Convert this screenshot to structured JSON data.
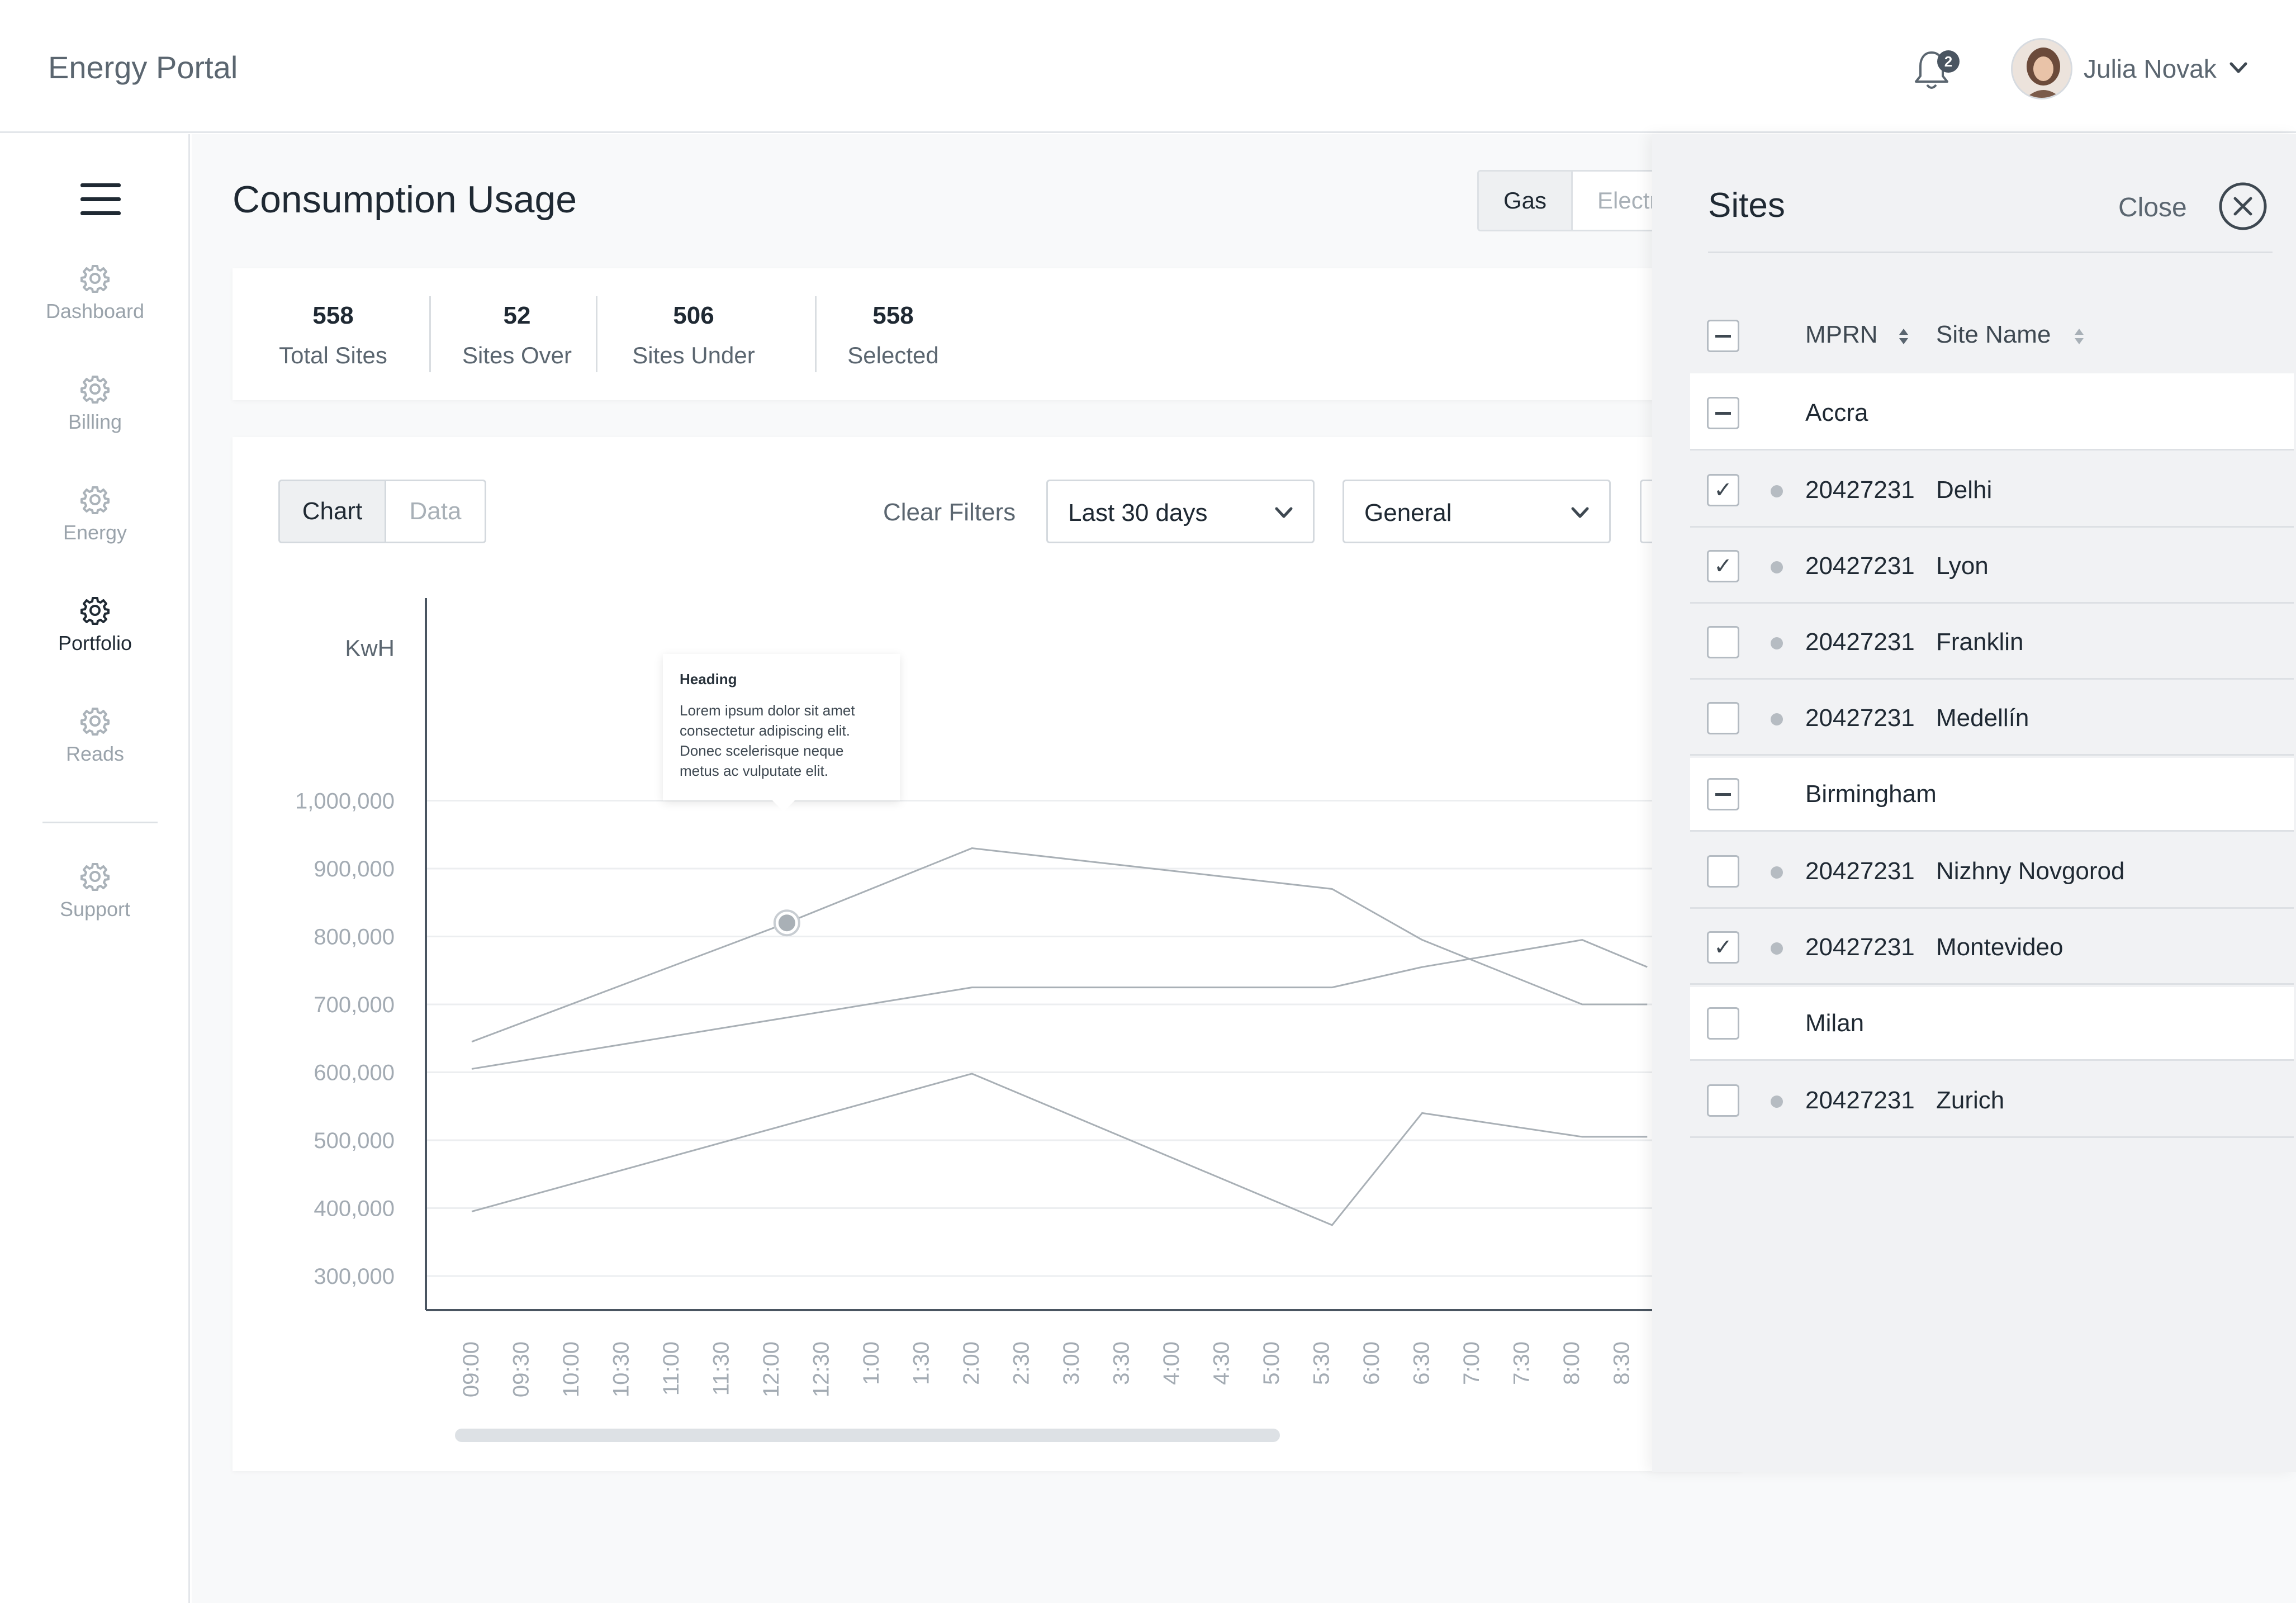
{
  "app": {
    "title": "Energy Portal"
  },
  "header": {
    "notification_count": "2",
    "user_name": "Julia Novak"
  },
  "sidebar": {
    "items": [
      {
        "label": "Dashboard",
        "icon": "gear-icon"
      },
      {
        "label": "Billing",
        "icon": "gear-icon"
      },
      {
        "label": "Energy",
        "icon": "gear-icon"
      },
      {
        "label": "Portfolio",
        "icon": "gear-icon",
        "active": true
      },
      {
        "label": "Reads",
        "icon": "gear-icon"
      },
      {
        "label": "Support",
        "icon": "gear-icon"
      }
    ]
  },
  "page": {
    "title": "Consumption Usage",
    "fuel_tabs": [
      "Gas",
      "Electr"
    ]
  },
  "stats": [
    {
      "value": "558",
      "label": "Total Sites"
    },
    {
      "value": "52",
      "label": "Sites Over"
    },
    {
      "value": "506",
      "label": "Sites Under"
    },
    {
      "value": "558",
      "label": "Selected"
    }
  ],
  "toolbar": {
    "view_tabs": [
      "Chart",
      "Data"
    ],
    "clear_filters": "Clear Filters",
    "period": "Last 30 days",
    "category": "General"
  },
  "tooltip": {
    "heading": "Heading",
    "body": "Lorem ipsum dolor sit amet consectetur adipiscing elit. Donec scelerisque neque metus ac vulputate elit."
  },
  "chart_data": {
    "type": "line",
    "ylabel": "KwH",
    "y_ticks": [
      "1,000,000",
      "900,000",
      "800,000",
      "700,000",
      "600,000",
      "500,000",
      "400,000",
      "300,000"
    ],
    "ylim": [
      300000,
      1000000
    ],
    "x": [
      "09:00",
      "09:30",
      "10:00",
      "10:30",
      "11:00",
      "11:30",
      "12:00",
      "12:30",
      "1:00",
      "1:30",
      "2:00",
      "2:30",
      "3:00",
      "3:30",
      "4:00",
      "4:30",
      "5:00",
      "5:30",
      "6:00",
      "6:30",
      "7:00",
      "7:30",
      "8:00",
      "8:30"
    ],
    "series": [
      {
        "points": [
          [
            0,
            645000
          ],
          [
            6.3,
            820000
          ],
          [
            10,
            930000
          ],
          [
            17.2,
            870000
          ],
          [
            19,
            795000
          ],
          [
            22.2,
            700000
          ],
          [
            23.5,
            700000
          ]
        ]
      },
      {
        "points": [
          [
            0,
            605000
          ],
          [
            10,
            725000
          ],
          [
            17.2,
            725000
          ],
          [
            19,
            755000
          ],
          [
            22.2,
            795000
          ],
          [
            23.5,
            755000
          ]
        ]
      },
      {
        "points": [
          [
            0,
            395000
          ],
          [
            10,
            598000
          ],
          [
            17.2,
            375000
          ],
          [
            19,
            540000
          ],
          [
            22.2,
            505000
          ],
          [
            23.5,
            505000
          ]
        ]
      }
    ],
    "highlight": {
      "series": 0,
      "x": 6.3,
      "y": 820000
    },
    "grid": true,
    "scroll_fraction": 0.56
  },
  "sites_panel": {
    "title": "Sites",
    "close_label": "Close",
    "columns": [
      "MPRN",
      "Site Name"
    ],
    "rows": [
      {
        "type": "group",
        "name": "Accra",
        "state": "minus"
      },
      {
        "type": "site",
        "mprn": "20427231",
        "site": "Delhi",
        "checked": true
      },
      {
        "type": "site",
        "mprn": "20427231",
        "site": "Lyon",
        "checked": true
      },
      {
        "type": "site",
        "mprn": "20427231",
        "site": "Franklin",
        "checked": false
      },
      {
        "type": "site",
        "mprn": "20427231",
        "site": "Medellín",
        "checked": false
      },
      {
        "type": "group",
        "name": "Birmingham",
        "state": "minus"
      },
      {
        "type": "site",
        "mprn": "20427231",
        "site": "Nizhny Novgorod",
        "checked": false
      },
      {
        "type": "site",
        "mprn": "20427231",
        "site": "Montevideo",
        "checked": true
      },
      {
        "type": "group",
        "name": "Milan",
        "state": "empty"
      },
      {
        "type": "site",
        "mprn": "20427231",
        "site": "Zurich",
        "checked": false
      }
    ]
  }
}
